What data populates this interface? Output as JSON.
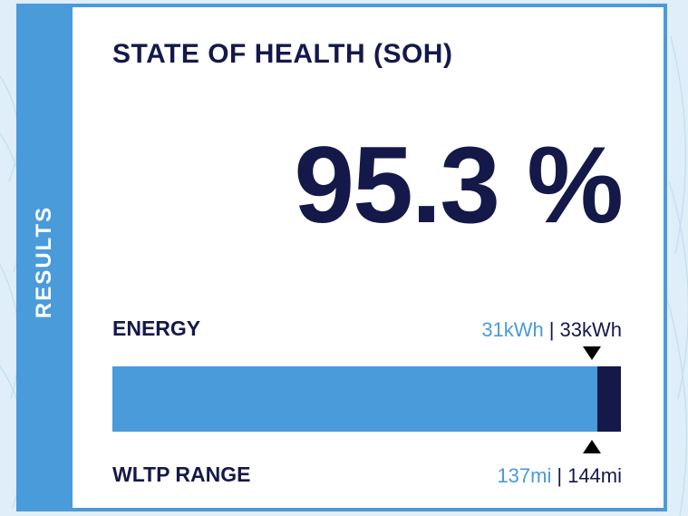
{
  "side_label": "RESULTS",
  "title": "STATE OF HEALTH (SOH)",
  "soh_value": "95.3 %",
  "soh_fraction": 0.953,
  "energy": {
    "label": "ENERGY",
    "current": "31kWh",
    "separator": "|",
    "total": "33kWh"
  },
  "range": {
    "label": "WLTP RANGE",
    "current": "137mi",
    "separator": "|",
    "total": "144mi"
  },
  "colors": {
    "accent": "#4a9bd9",
    "dark": "#14194a",
    "background": "#dfeef8"
  }
}
